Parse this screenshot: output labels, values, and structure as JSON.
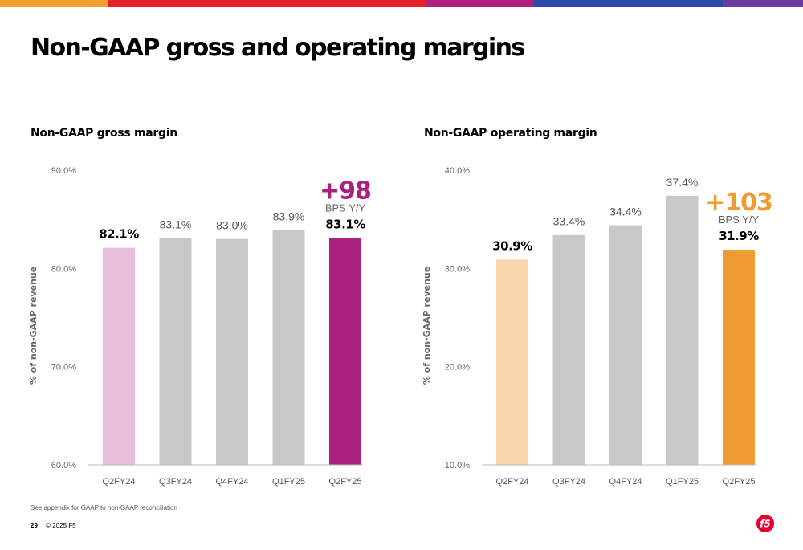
{
  "title": "Non-GAAP gross and operating margins",
  "top_bar_colors": [
    "#f0a030",
    "#e8202a",
    "#b0207f",
    "#2a4aa8",
    "#6a3aa0"
  ],
  "chart_data": [
    {
      "type": "bar",
      "title": "Non-GAAP gross margin",
      "ylabel": "% of non-GAAP revenue",
      "xlabel": "",
      "categories": [
        "Q2FY24",
        "Q3FY24",
        "Q4FY24",
        "Q1FY25",
        "Q2FY25"
      ],
      "values": [
        82.1,
        83.1,
        83.0,
        83.9,
        83.1
      ],
      "value_labels": [
        "82.1%",
        "83.1%",
        "83.0%",
        "83.9%",
        "83.1%"
      ],
      "highlight": [
        true,
        false,
        false,
        false,
        true
      ],
      "colors": [
        "#e6bedc",
        "#c8c8c8",
        "#c8c8c8",
        "#c8c8c8",
        "#ac2080"
      ],
      "ylim": [
        60,
        90
      ],
      "yticks": [
        60,
        70,
        80,
        90
      ],
      "ytick_labels": [
        "60.0%",
        "70.0%",
        "80.0%",
        "90.0%"
      ],
      "grid": false,
      "annotation": {
        "value": "+98",
        "sub": "BPS Y/Y",
        "color": "#ac2080"
      }
    },
    {
      "type": "bar",
      "title": "Non-GAAP operating margin",
      "ylabel": "% of non-GAAP revenue",
      "xlabel": "",
      "categories": [
        "Q2FY24",
        "Q3FY24",
        "Q4FY24",
        "Q1FY25",
        "Q2FY25"
      ],
      "values": [
        30.9,
        33.4,
        34.4,
        37.4,
        31.9
      ],
      "value_labels": [
        "30.9%",
        "33.4%",
        "34.4%",
        "37.4%",
        "31.9%"
      ],
      "highlight": [
        true,
        false,
        false,
        false,
        true
      ],
      "colors": [
        "#fad5ae",
        "#c8c8c8",
        "#c8c8c8",
        "#c8c8c8",
        "#f09a32"
      ],
      "ylim": [
        10,
        40
      ],
      "yticks": [
        10,
        20,
        30,
        40
      ],
      "ytick_labels": [
        "10.0%",
        "20.0%",
        "30.0%",
        "40.0%"
      ],
      "grid": false,
      "annotation": {
        "value": "+103",
        "sub": "BPS Y/Y",
        "color": "#f09a32"
      }
    }
  ],
  "footnote": "See appendix for GAAP to non-GAAP reconciliation",
  "footer": {
    "page": "29",
    "copyright": "© 2025 F5"
  },
  "logo": {
    "text": "f5",
    "color": "#e4002b"
  }
}
